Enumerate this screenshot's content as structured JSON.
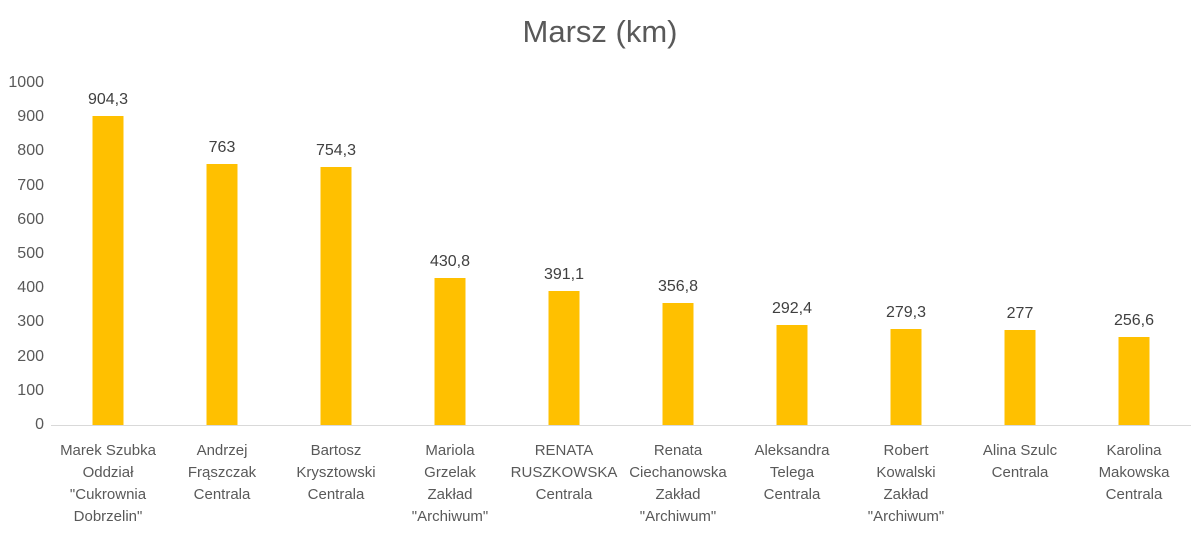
{
  "chart_data": {
    "type": "bar",
    "title": "Marsz (km)",
    "categories": [
      "Marek Szubka Oddział \"Cukrownia Dobrzelin\"",
      "Andrzej Frąszczak Centrala",
      "Bartosz Krysztowski Centrala",
      "Mariola Grzelak Zakład \"Archiwum\"",
      "RENATA RUSZKOWSKA Centrala",
      "Renata Ciechanowska Zakład \"Archiwum\"",
      "Aleksandra Telega Centrala",
      "Robert Kowalski Zakład \"Archiwum\"",
      "Alina Szulc Centrala",
      "Karolina Makowska Centrala"
    ],
    "category_lines": [
      [
        "Marek Szubka",
        "Oddział",
        "\"Cukrownia",
        "Dobrzelin\""
      ],
      [
        "Andrzej",
        "Frąszczak",
        "Centrala"
      ],
      [
        "Bartosz",
        "Krysztowski",
        "Centrala"
      ],
      [
        "Mariola",
        "Grzelak",
        "Zakład",
        "\"Archiwum\""
      ],
      [
        "RENATA",
        "RUSZKOWSKA",
        "Centrala"
      ],
      [
        "Renata",
        "Ciechanowska",
        "Zakład",
        "\"Archiwum\""
      ],
      [
        "Aleksandra",
        "Telega",
        "Centrala"
      ],
      [
        "Robert",
        "Kowalski",
        "Zakład",
        "\"Archiwum\""
      ],
      [
        "Alina Szulc",
        "Centrala"
      ],
      [
        "Karolina",
        "Makowska",
        "Centrala"
      ]
    ],
    "values": [
      904.3,
      763,
      754.3,
      430.8,
      391.1,
      356.8,
      292.4,
      279.3,
      277,
      256.6
    ],
    "value_labels": [
      "904,3",
      "763",
      "754,3",
      "430,8",
      "391,1",
      "356,8",
      "292,4",
      "279,3",
      "277",
      "256,6"
    ],
    "yticks": [
      0,
      100,
      200,
      300,
      400,
      500,
      600,
      700,
      800,
      900,
      1000
    ],
    "ylim": [
      0,
      1000
    ],
    "xlabel": "",
    "ylabel": "",
    "grid": false,
    "legend_position": "none",
    "colors": {
      "bar": "#FFC000",
      "title": "#595959",
      "value_label": "#404040",
      "axis_text": "#595959",
      "axis_line": "#D9D9D9",
      "background": "#FFFFFF"
    }
  }
}
